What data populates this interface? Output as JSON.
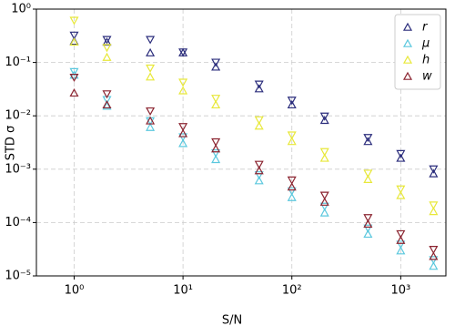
{
  "chart_data": {
    "type": "scatter",
    "xlabel": "S/N",
    "ylabel": "STD σ",
    "x": [
      1,
      2,
      5,
      10,
      20,
      50,
      100,
      200,
      500,
      1000,
      2000
    ],
    "xlog": true,
    "ylog": true,
    "grid": true,
    "legend": "upper right",
    "xlim": [
      0.45,
      2600
    ],
    "ylim": [
      1e-05,
      1
    ],
    "xticks": [
      {
        "value": 1,
        "label": "10⁰"
      },
      {
        "value": 10,
        "label": "10¹"
      },
      {
        "value": 100,
        "label": "10²"
      },
      {
        "value": 1000,
        "label": "10³"
      }
    ],
    "yticks": [
      {
        "value": 1e-05,
        "label": "10⁻⁵"
      },
      {
        "value": 0.0001,
        "label": "10⁻⁴"
      },
      {
        "value": 0.001,
        "label": "10⁻³"
      },
      {
        "value": 0.01,
        "label": "10⁻²"
      },
      {
        "value": 0.1,
        "label": "10⁻¹"
      },
      {
        "value": 1,
        "label": "10⁰"
      }
    ],
    "series": [
      {
        "name": "r",
        "color": "#2b2d7c",
        "values": [
          0.28,
          0.27,
          0.17,
          0.17,
          0.092,
          0.036,
          0.018,
          0.0092,
          0.0037,
          0.0018,
          0.00092
        ],
        "values_down": [
          0.29,
          0.24,
          0.24,
          0.14,
          0.09,
          0.035,
          0.0175,
          0.0088,
          0.0035,
          0.00175,
          0.0009
        ]
      },
      {
        "name": "μ",
        "color": "#5bc8de",
        "values": [
          0.065,
          0.017,
          0.0068,
          0.0034,
          0.0017,
          0.00068,
          0.00033,
          0.00017,
          6.8e-05,
          3.3e-05,
          1.7e-05
        ],
        "values_down": [
          0.06,
          0.018,
          0.0072,
          0.0036,
          0.0018,
          0.0007,
          0.00035,
          0.00018,
          7e-05,
          3.5e-05,
          1.8e-05
        ]
      },
      {
        "name": "h",
        "color": "#e8e83a",
        "values": [
          0.27,
          0.14,
          0.06,
          0.033,
          0.018,
          0.0072,
          0.0037,
          0.0018,
          0.00072,
          0.00036,
          0.00018
        ],
        "values_down": [
          0.55,
          0.17,
          0.07,
          0.038,
          0.019,
          0.0075,
          0.0039,
          0.0019,
          0.00075,
          0.00038,
          0.00019
        ]
      },
      {
        "name": "w",
        "color": "#8b2430",
        "values": [
          0.03,
          0.018,
          0.009,
          0.0052,
          0.0027,
          0.00105,
          0.00052,
          0.00027,
          0.000105,
          5.2e-05,
          2.6e-05
        ],
        "values_down": [
          0.047,
          0.023,
          0.011,
          0.0056,
          0.0029,
          0.0011,
          0.00056,
          0.00029,
          0.00011,
          5.5e-05,
          2.8e-05
        ]
      }
    ]
  }
}
